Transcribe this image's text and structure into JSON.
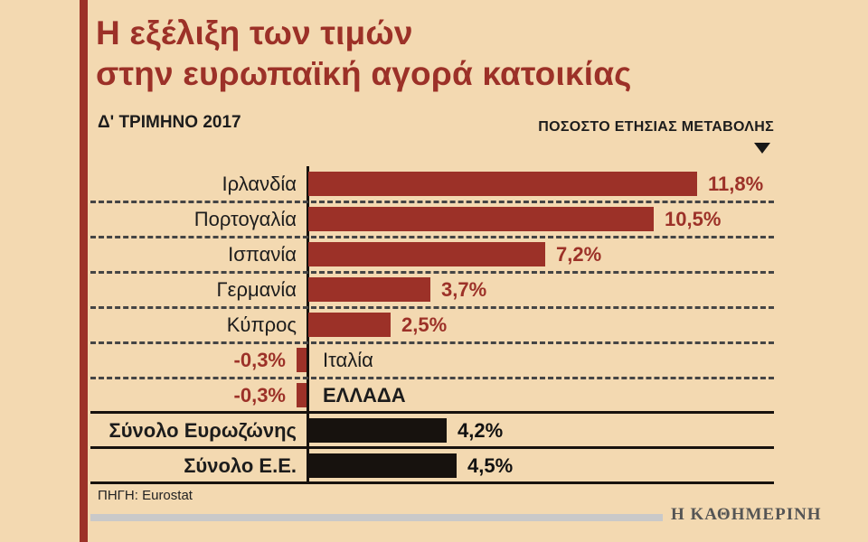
{
  "title": {
    "line1": "Η εξέλιξη των τιμών",
    "line2": "στην ευρωπαϊκή αγορά κατοικίας"
  },
  "period": "Δ' ΤΡΙΜΗΝΟ 2017",
  "axis_title": "ΠΟΣΟΣΤΟ ΕΤΗΣΙΑΣ ΜΕΤΑΒΟΛΗΣ",
  "source": "ΠΗΓΗ: Eurostat",
  "brand": "Η ΚΑΘΗΜΕΡΙΝΗ",
  "colors": {
    "background": "#f3d9b1",
    "bar_red": "#9c3128",
    "bar_black": "#17120e",
    "text_dark": "#1c1c1c",
    "brand_gray": "#555555",
    "rule_gray": "#c9c9c9"
  },
  "chart_data": {
    "type": "bar",
    "orientation": "horizontal",
    "title": "Η εξέλιξη των τιμών στην ευρωπαϊκή αγορά κατοικίας",
    "subtitle": "Δ' ΤΡΙΜΗΝΟ 2017",
    "value_axis_label": "ΠΟΣΟΣΤΟ ΕΤΗΣΙΑΣ ΜΕΤΑΒΟΛΗΣ",
    "unit": "%",
    "xlim": [
      -1,
      12.6
    ],
    "source": "Eurostat",
    "rows": [
      {
        "label": "Ιρλανδία",
        "value": 11.8,
        "value_label": "11,8%",
        "color": "red"
      },
      {
        "label": "Πορτογαλία",
        "value": 10.5,
        "value_label": "10,5%",
        "color": "red"
      },
      {
        "label": "Ισπανία",
        "value": 7.2,
        "value_label": "7,2%",
        "color": "red"
      },
      {
        "label": "Γερμανία",
        "value": 3.7,
        "value_label": "3,7%",
        "color": "red"
      },
      {
        "label": "Κύπρος",
        "value": 2.5,
        "value_label": "2,5%",
        "color": "red"
      },
      {
        "label": "Ιταλία",
        "value": -0.3,
        "value_label": "-0,3%",
        "color": "red"
      },
      {
        "label": "ΕΛΛΑΔΑ",
        "value": -0.3,
        "value_label": "-0,3%",
        "color": "red",
        "emphasis": true
      },
      {
        "label": "Σύνολο Ευρωζώνης",
        "value": 4.2,
        "value_label": "4,2%",
        "color": "black",
        "emphasis": true
      },
      {
        "label": "Σύνολο Ε.Ε.",
        "value": 4.5,
        "value_label": "4,5%",
        "color": "black",
        "emphasis": true
      }
    ]
  }
}
